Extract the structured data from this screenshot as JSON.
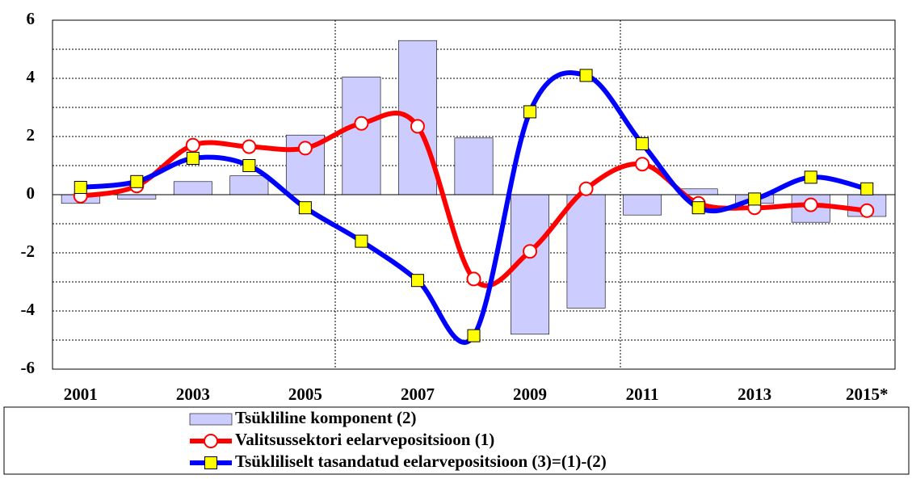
{
  "chart_data": {
    "type": "bar-line",
    "categories": [
      "2001",
      null,
      "2003",
      null,
      "2005",
      null,
      "2007",
      null,
      "2009",
      null,
      "2011",
      null,
      "2013",
      null,
      "2015*"
    ],
    "series": [
      {
        "name": "Tsükliline komponent (2)",
        "type": "bar",
        "color": "#ccccff",
        "values": [
          -0.3,
          -0.15,
          0.45,
          0.65,
          2.05,
          4.05,
          5.3,
          1.95,
          -4.8,
          -3.9,
          -0.7,
          0.2,
          -0.3,
          -0.95,
          -0.75
        ]
      },
      {
        "name": "Valitsussektori eelarvepositsioon (1)",
        "type": "line",
        "color": "#ff0000",
        "marker": "circle",
        "values": [
          -0.05,
          0.3,
          1.7,
          1.65,
          1.6,
          2.45,
          2.35,
          -2.9,
          -1.95,
          0.2,
          1.05,
          -0.3,
          -0.45,
          -0.35,
          -0.55
        ]
      },
      {
        "name": "Tsükliliselt tasandatud eelarvepositsioon (3)=(1)-(2)",
        "type": "line",
        "color": "#0000ff",
        "marker": "square",
        "values": [
          0.25,
          0.45,
          1.25,
          1.0,
          -0.45,
          -1.6,
          -2.95,
          -4.85,
          2.85,
          4.1,
          1.75,
          -0.45,
          -0.15,
          0.6,
          0.2
        ]
      }
    ],
    "ylim": [
      -6,
      6
    ],
    "yticks": [
      -6,
      -4,
      -2,
      0,
      2,
      4,
      6
    ],
    "minor_yticks": [
      -5,
      -3,
      -1,
      1,
      3,
      5
    ],
    "grid": true
  }
}
